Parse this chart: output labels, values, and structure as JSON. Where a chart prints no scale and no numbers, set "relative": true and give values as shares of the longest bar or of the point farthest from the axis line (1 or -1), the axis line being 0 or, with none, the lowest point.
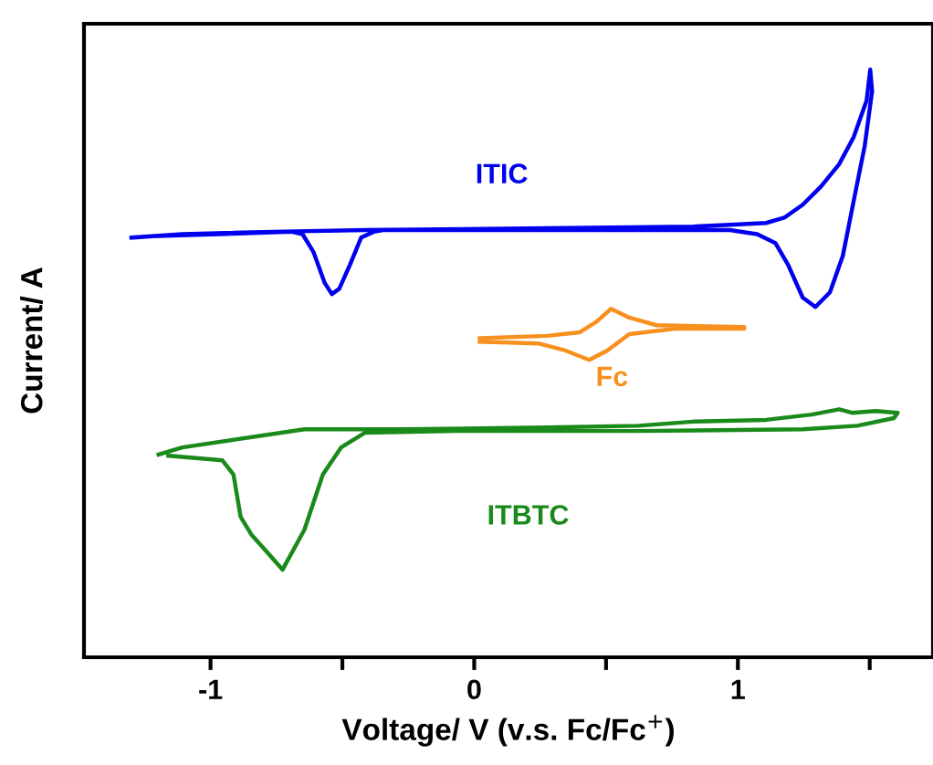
{
  "chart_data": {
    "type": "line",
    "relative": true,
    "xlabel": "Voltage/ V (v.s. Fc/Fc$^{+}$)",
    "ylabel": "Current/ A",
    "xlim": [
      -1.48,
      1.74
    ],
    "xticks": [
      {
        "value": -1,
        "label": "-1"
      },
      {
        "value": -0.5,
        "label": null
      },
      0,
      {
        "value": 0.5,
        "label": null
      },
      1,
      {
        "value": 1.5,
        "label": null
      }
    ],
    "grid": false,
    "legend": false,
    "marker": "none",
    "line_style": "solid",
    "series": [
      {
        "name": "ITIC",
        "color": "#0000ee",
        "x": [
          -1.3,
          -1.107,
          -0.761,
          -0.415,
          0.277,
          0.83,
          0.969,
          1.107,
          1.176,
          1.246,
          1.315,
          1.384,
          1.439,
          1.488,
          1.502,
          1.509,
          1.481,
          1.439,
          1.398,
          1.349,
          1.294,
          1.246,
          1.19,
          1.142,
          1.073,
          0.969,
          0.277,
          -0.346,
          -0.381,
          -0.429,
          -0.471,
          -0.512,
          -0.54,
          -0.567,
          -0.609,
          -0.651,
          -0.692,
          -0.969,
          -1.25
        ],
        "values": [
          0.714,
          0.72,
          0.724,
          0.727,
          0.73,
          0.733,
          0.736,
          0.739,
          0.748,
          0.77,
          0.801,
          0.839,
          0.885,
          0.947,
          1.0,
          0.963,
          0.87,
          0.776,
          0.683,
          0.621,
          0.596,
          0.612,
          0.668,
          0.705,
          0.72,
          0.727,
          0.727,
          0.727,
          0.724,
          0.714,
          0.668,
          0.627,
          0.618,
          0.637,
          0.689,
          0.72,
          0.724,
          0.72,
          0.716
        ]
      },
      {
        "name": "Fc",
        "color": "#f7901e",
        "x": [
          0.021,
          0.277,
          0.401,
          0.464,
          0.519,
          0.588,
          0.692,
          1.024,
          1.024,
          0.761,
          0.588,
          0.505,
          0.436,
          0.346,
          0.242,
          0.021
        ],
        "values": [
          0.543,
          0.547,
          0.553,
          0.571,
          0.593,
          0.578,
          0.565,
          0.562,
          0.559,
          0.559,
          0.55,
          0.522,
          0.506,
          0.522,
          0.534,
          0.537
        ]
      },
      {
        "name": "ITBTC",
        "color": "#1a8a1a",
        "x": [
          -1.197,
          -1.107,
          -0.644,
          -0.277,
          0.277,
          0.623,
          0.83,
          1.107,
          1.28,
          1.384,
          1.433,
          1.522,
          1.606,
          1.592,
          1.453,
          1.246,
          0.623,
          -0.069,
          -0.415,
          -0.505,
          -0.574,
          -0.644,
          -0.727,
          -0.782,
          -0.844,
          -0.886,
          -0.913,
          -0.955,
          -1.16
        ],
        "values": [
          0.345,
          0.357,
          0.388,
          0.388,
          0.391,
          0.394,
          0.401,
          0.404,
          0.413,
          0.422,
          0.416,
          0.419,
          0.416,
          0.407,
          0.394,
          0.388,
          0.385,
          0.385,
          0.382,
          0.357,
          0.311,
          0.217,
          0.149,
          0.177,
          0.208,
          0.239,
          0.311,
          0.335,
          0.343
        ]
      }
    ]
  }
}
